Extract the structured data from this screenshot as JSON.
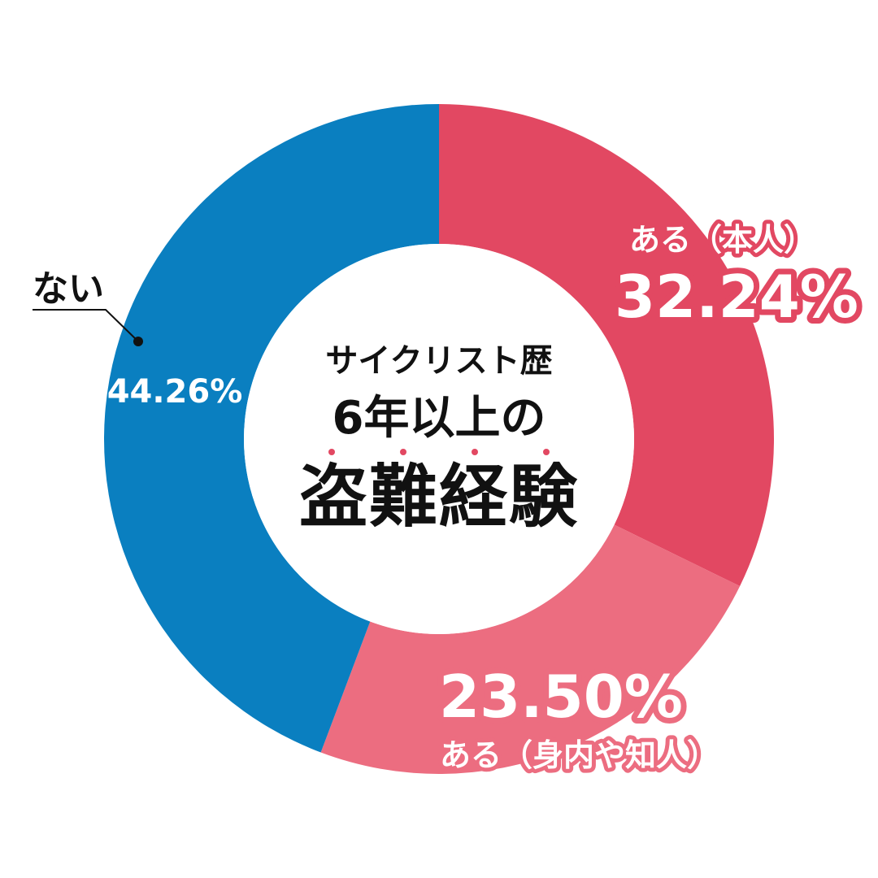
{
  "center_title": {
    "line1": "サイクリスト歴",
    "line2": "6年以上の",
    "line3": "盗難経験"
  },
  "colors": {
    "self": "#E24862",
    "family_friends": "#EC6D80",
    "none": "#0A7FC0",
    "center": "#FFFFFF",
    "text_dark": "#111111"
  },
  "chart_data": {
    "type": "donut",
    "unit": "%",
    "slices": [
      {
        "label": "ある（本人）",
        "value": 32.24,
        "value_text": "32.24%",
        "color": "#E24862"
      },
      {
        "label": "ある（身内や知人）",
        "value": 23.5,
        "value_text": "23.50%",
        "color": "#EC6D80"
      },
      {
        "label": "ない",
        "value": 44.26,
        "value_text": "44.26%",
        "color": "#0A7FC0"
      }
    ]
  }
}
